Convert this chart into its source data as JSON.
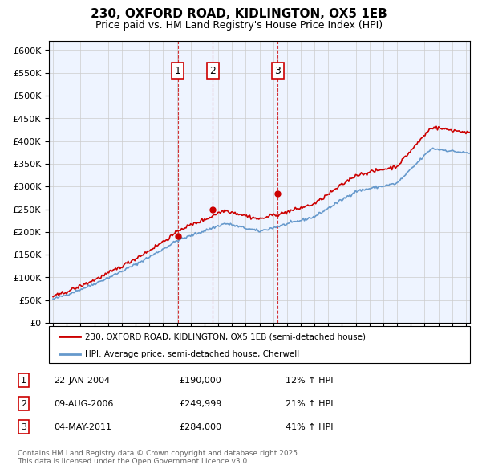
{
  "title": "230, OXFORD ROAD, KIDLINGTON, OX5 1EB",
  "subtitle": "Price paid vs. HM Land Registry's House Price Index (HPI)",
  "legend_line1": "230, OXFORD ROAD, KIDLINGTON, OX5 1EB (semi-detached house)",
  "legend_line2": "HPI: Average price, semi-detached house, Cherwell",
  "transactions": [
    {
      "num": 1,
      "date": "22-JAN-2004",
      "price": "£190,000",
      "hpi": "12% ↑ HPI",
      "year": 2004.06
    },
    {
      "num": 2,
      "date": "09-AUG-2006",
      "price": "£249,999",
      "hpi": "21% ↑ HPI",
      "year": 2006.61
    },
    {
      "num": 3,
      "date": "04-MAY-2011",
      "price": "£284,000",
      "hpi": "41% ↑ HPI",
      "year": 2011.34
    }
  ],
  "footer": "Contains HM Land Registry data © Crown copyright and database right 2025.\nThis data is licensed under the Open Government Licence v3.0.",
  "red_color": "#cc0000",
  "blue_color": "#6699cc",
  "plot_bg": "#eef4ff",
  "grid_color": "#cccccc",
  "ylim": [
    0,
    620000
  ],
  "yticks": [
    0,
    50000,
    100000,
    150000,
    200000,
    250000,
    300000,
    350000,
    400000,
    450000,
    500000,
    550000,
    600000
  ],
  "year_start": 1995,
  "year_end": 2026
}
